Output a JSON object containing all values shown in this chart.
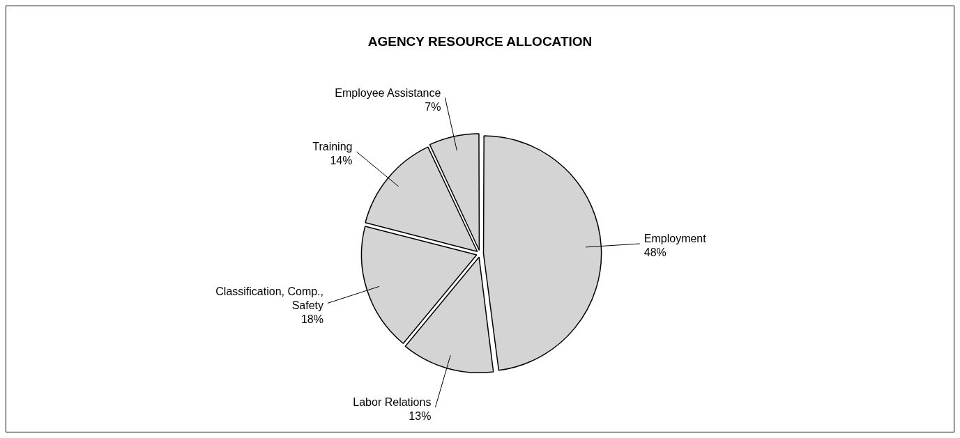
{
  "chart_data": {
    "type": "pie",
    "title": "AGENCY RESOURCE ALLOCATION",
    "categories": [
      "Employment",
      "Labor Relations",
      "Classification, Comp., Safety",
      "Training",
      "Employee Assistance"
    ],
    "values": [
      48,
      13,
      18,
      14,
      7
    ],
    "value_labels": [
      "48%",
      "13%",
      "18%",
      "14%",
      "7%"
    ],
    "colors": [
      "#d4d4d4",
      "#d4d4d4",
      "#d4d4d4",
      "#d4d4d4",
      "#d4d4d4"
    ],
    "legend": false
  }
}
